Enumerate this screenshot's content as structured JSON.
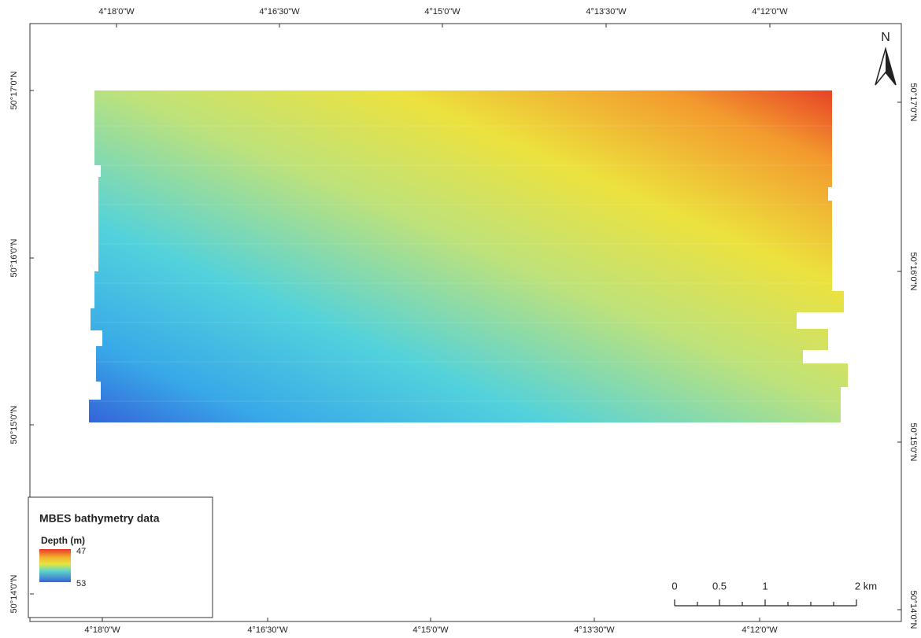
{
  "graticule": {
    "top": [
      "4°18'0\"W",
      "4°16'30\"W",
      "4°15'0\"W",
      "4°13'30\"W",
      "4°12'0\"W"
    ],
    "bottom": [
      "4°18'0\"W",
      "4°16'30\"W",
      "4°15'0\"W",
      "4°13'30\"W",
      "4°12'0\"W"
    ],
    "left": [
      "50°17'0\"N",
      "50°16'0\"N",
      "50°15'0\"N",
      "50°14'0\"N"
    ],
    "right": [
      "50°17'0\"N",
      "50°16'0\"N",
      "50°15'0\"N",
      "50°14'0\"N"
    ]
  },
  "legend": {
    "title": "MBES bathymetry data",
    "field": "Depth (m)",
    "max": "47",
    "min": "53"
  },
  "scale_bar": {
    "labels": [
      "0",
      "0.5",
      "1",
      "2 km"
    ]
  },
  "north_arrow": {
    "label": "N"
  }
}
